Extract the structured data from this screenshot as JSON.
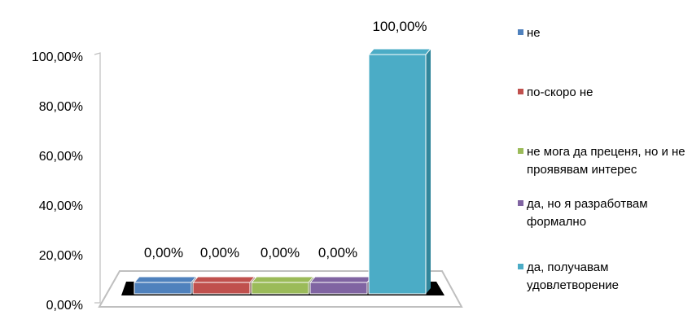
{
  "chart_data": {
    "type": "bar",
    "style": "3d-clustered-column",
    "series": [
      {
        "name": "не",
        "value": 0.0,
        "label": "0,00%",
        "color": "#4f81bd",
        "dark": "#1f3a5a"
      },
      {
        "name": "по-скоро не",
        "value": 0.0,
        "label": "0,00%",
        "color": "#c0504d",
        "dark": "#632523"
      },
      {
        "name": "не мога да преценя, но и не проявявам интерес",
        "value": 0.0,
        "label": "0,00%",
        "color": "#9bbb59",
        "dark": "#4e6128"
      },
      {
        "name": "да, но я разработвам формално",
        "value": 0.0,
        "label": "0,00%",
        "color": "#8064a2",
        "dark": "#3f3151"
      },
      {
        "name": "да, получавам удовлетворение",
        "value": 100.0,
        "label": "100,00%",
        "color": "#4bacc6",
        "dark": "#31869b"
      }
    ],
    "ylim": [
      0,
      100
    ],
    "yticks": [
      "0,00%",
      "20,00%",
      "40,00%",
      "60,00%",
      "80,00%",
      "100,00%"
    ],
    "legend_position": "right",
    "grid": false
  }
}
